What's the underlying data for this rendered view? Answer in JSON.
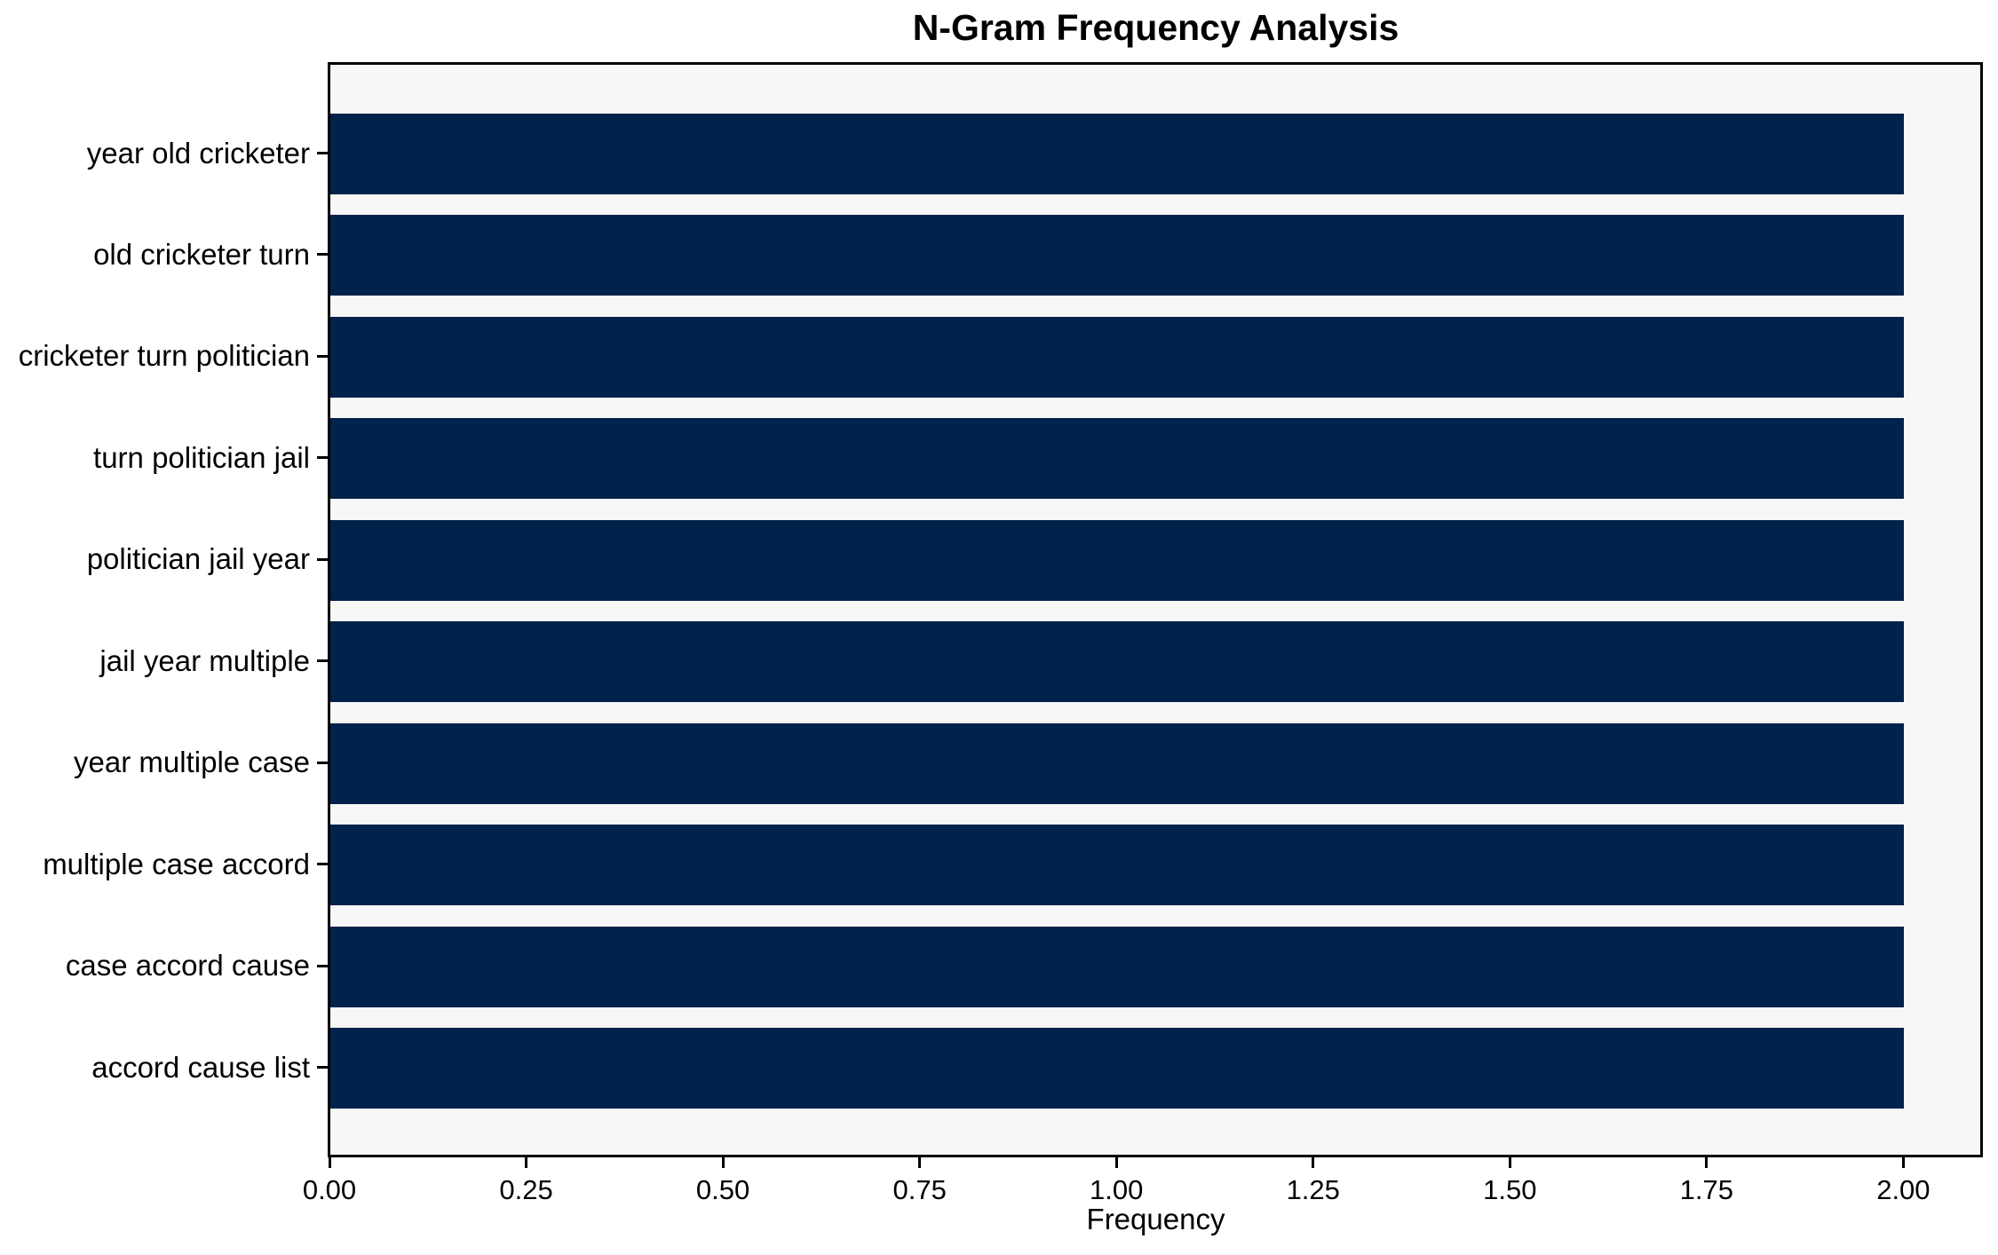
{
  "title": "N-Gram Frequency Analysis",
  "chart_data": {
    "type": "bar",
    "orientation": "horizontal",
    "title": "N-Gram Frequency Analysis",
    "categories": [
      "year old cricketer",
      "old cricketer turn",
      "cricketer turn politician",
      "turn politician jail",
      "politician jail year",
      "jail year multiple",
      "year multiple case",
      "multiple case accord",
      "case accord cause",
      "accord cause list"
    ],
    "values": [
      2,
      2,
      2,
      2,
      2,
      2,
      2,
      2,
      2,
      2
    ],
    "xlabel": "Frequency",
    "ylabel": "",
    "xlim": [
      0,
      2.1
    ],
    "xticks": [
      {
        "value": 0.0,
        "label": "0.00"
      },
      {
        "value": 0.25,
        "label": "0.25"
      },
      {
        "value": 0.5,
        "label": "0.50"
      },
      {
        "value": 0.75,
        "label": "0.75"
      },
      {
        "value": 1.0,
        "label": "1.00"
      },
      {
        "value": 1.25,
        "label": "1.25"
      },
      {
        "value": 1.5,
        "label": "1.50"
      },
      {
        "value": 1.75,
        "label": "1.75"
      },
      {
        "value": 2.0,
        "label": "2.00"
      }
    ],
    "grid": false,
    "legend": null,
    "colors": {
      "bar": "#01224a",
      "plot_background": "#f7f7f7",
      "figure_background": "#ffffff",
      "axis": "#000000",
      "text": "#000000"
    }
  }
}
